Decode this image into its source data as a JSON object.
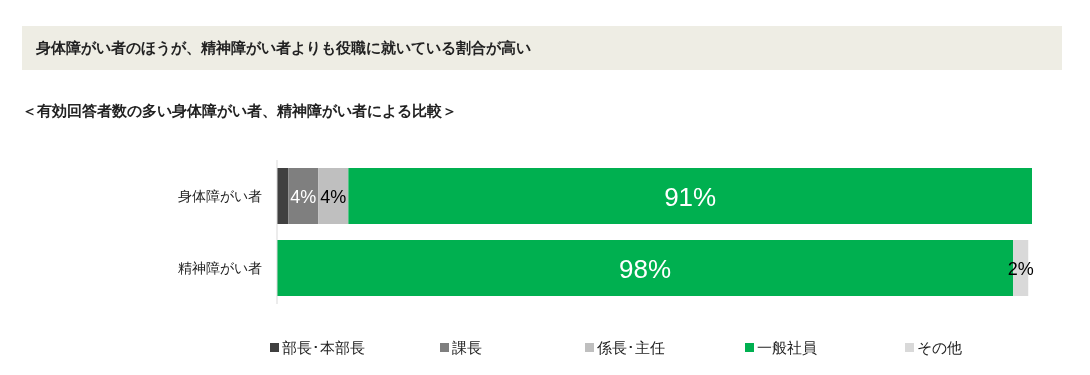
{
  "chart_data": {
    "type": "bar",
    "orientation": "horizontal",
    "stacked": true,
    "title": "身体障がい者のほうが、精神障がい者よりも役職に就いている割合が高い",
    "subtitle": "＜有効回答者数の多い身体障がい者、精神障がい者による比較＞",
    "categories": [
      "身体障がい者",
      "精神障がい者"
    ],
    "legend": "bottom",
    "series": [
      {
        "name": "部長･本部長",
        "color": "#404040",
        "values": [
          1.5,
          0
        ],
        "value_labels": [
          null,
          null
        ]
      },
      {
        "name": "課長",
        "color": "#7f7f7f",
        "values": [
          4,
          0
        ],
        "value_labels": [
          "4%",
          null
        ]
      },
      {
        "name": "係長･主任",
        "color": "#bfbfbf",
        "values": [
          4,
          0
        ],
        "value_labels": [
          "4%",
          null
        ]
      },
      {
        "name": "一般社員",
        "color": "#00b050",
        "values": [
          91,
          98
        ],
        "value_labels": [
          "91%",
          "98%"
        ]
      },
      {
        "name": "その他",
        "color": "#d9d9d9",
        "values": [
          0,
          2
        ],
        "value_labels": [
          null,
          "2%"
        ]
      }
    ]
  }
}
